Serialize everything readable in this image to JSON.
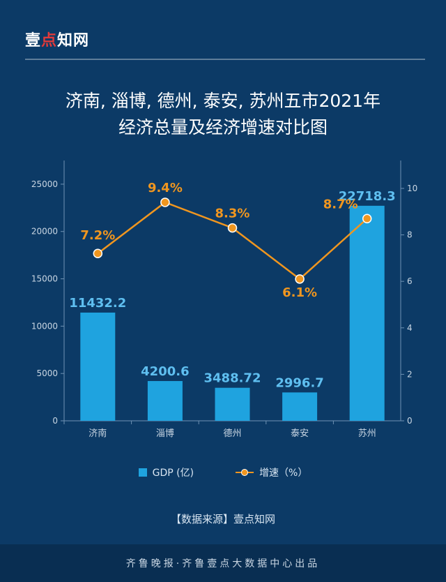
{
  "header": {
    "logo_prefix": "壹",
    "logo_dot": "点",
    "logo_suffix": "知网",
    "title_line1": "济南, 淄博, 德州, 泰安, 苏州五市2021年",
    "title_line2": "经济总量及经济增速对比图"
  },
  "legend": {
    "gdp_label": "GDP (亿)",
    "growth_label": "增速（%）"
  },
  "source": "【数据来源】壹点知网",
  "footer": "齐鲁晚报·齐鲁壹点大数据中心出品",
  "colors": {
    "bar": "#1fa3df",
    "line": "#f0961f",
    "bar_label": "#5fbff0",
    "line_label": "#f0961f",
    "axis": "#6f92b4",
    "tick": "#c9d6e3"
  },
  "chart_data": {
    "type": "bar",
    "title": "济南, 淄博, 德州, 泰安, 苏州五市2021年经济总量及经济增速对比图",
    "categories": [
      "济南",
      "淄博",
      "德州",
      "泰安",
      "苏州"
    ],
    "series": [
      {
        "name": "GDP (亿)",
        "type": "bar",
        "axis": "left",
        "values": [
          11432.2,
          4200.6,
          3488.72,
          2996.7,
          22718.3
        ],
        "labels": [
          "11432.2",
          "4200.6",
          "3488.72",
          "2996.7",
          "22718.3"
        ]
      },
      {
        "name": "增速（%）",
        "type": "line",
        "axis": "right",
        "values": [
          7.2,
          9.4,
          8.3,
          6.1,
          8.7
        ],
        "labels": [
          "7.2%",
          "9.4%",
          "8.3%",
          "6.1%",
          "8.7%"
        ]
      }
    ],
    "y_left": {
      "lim": [
        0,
        27500
      ],
      "ticks": [
        0,
        5000,
        10000,
        15000,
        20000,
        25000
      ]
    },
    "y_right": {
      "lim": [
        0,
        11.2
      ],
      "ticks": [
        0,
        2,
        4,
        6,
        8,
        10
      ]
    },
    "legend_position": "bottom"
  }
}
